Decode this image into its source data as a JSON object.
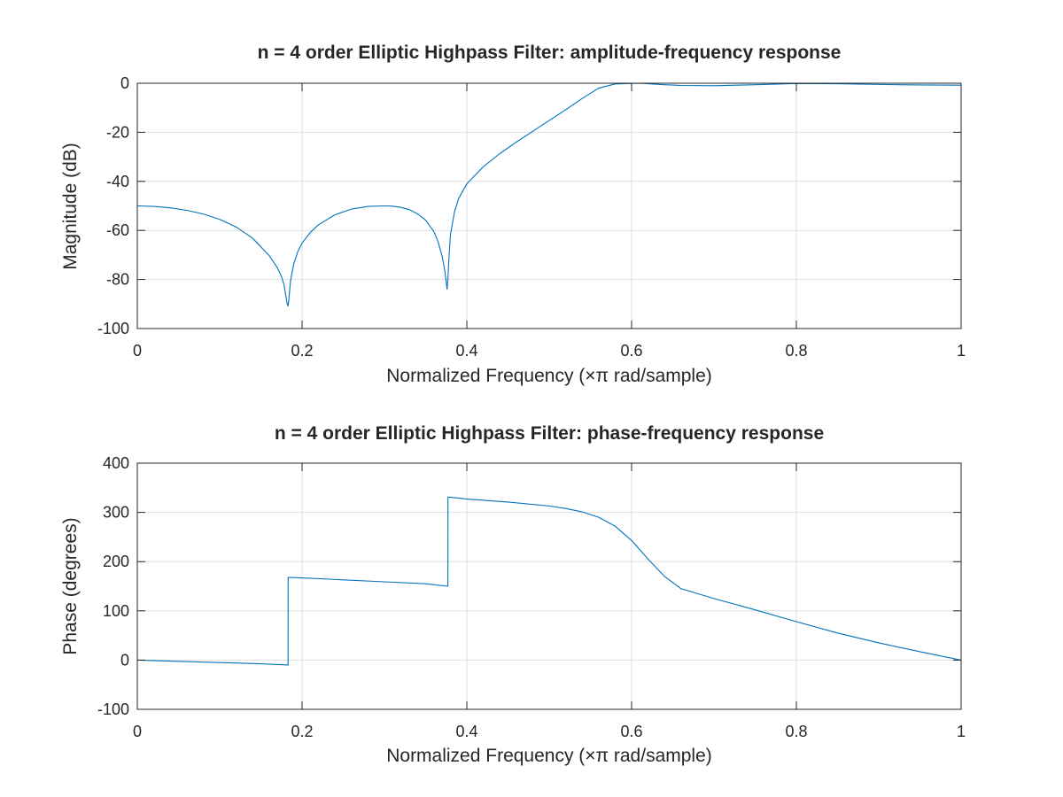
{
  "chart_data": [
    {
      "type": "line",
      "title": "n = 4 order Elliptic Highpass Filter: amplitude-frequency response",
      "xlabel": "Normalized Frequency (×π rad/sample)",
      "ylabel": "Magnitude (dB)",
      "xlim": [
        0,
        1
      ],
      "ylim": [
        -100,
        0
      ],
      "xticks": [
        "0",
        "0.2",
        "0.4",
        "0.6",
        "0.8",
        "1"
      ],
      "yticks": [
        "-100",
        "-80",
        "-60",
        "-40",
        "-20",
        "0"
      ],
      "grid": true,
      "color": "#0072bd",
      "series": [
        {
          "x": [
            0,
            0.02,
            0.04,
            0.06,
            0.08,
            0.1,
            0.12,
            0.14,
            0.16,
            0.17,
            0.175,
            0.178,
            0.18,
            0.182,
            0.183,
            0.184,
            0.186,
            0.19,
            0.195,
            0.2,
            0.21,
            0.22,
            0.24,
            0.26,
            0.28,
            0.3,
            0.31,
            0.32,
            0.33,
            0.34,
            0.35,
            0.36,
            0.365,
            0.37,
            0.373,
            0.375,
            0.376,
            0.377,
            0.378,
            0.38,
            0.385,
            0.39,
            0.4,
            0.42,
            0.44,
            0.46,
            0.48,
            0.5,
            0.52,
            0.54,
            0.56,
            0.58,
            0.6,
            0.61,
            0.62,
            0.64,
            0.66,
            0.7,
            0.75,
            0.8,
            0.85,
            0.9,
            0.95,
            1.0
          ],
          "values": [
            -50,
            -50.2,
            -50.8,
            -51.8,
            -53.3,
            -55.5,
            -58.6,
            -63.2,
            -70.2,
            -75.2,
            -78.8,
            -82,
            -86,
            -90,
            -90.8,
            -88,
            -80.5,
            -73.5,
            -68.5,
            -65.2,
            -60.8,
            -57.7,
            -53.6,
            -51.3,
            -50.2,
            -50.0,
            -50.1,
            -50.6,
            -51.5,
            -53.2,
            -55.8,
            -60.5,
            -64.5,
            -70.5,
            -76,
            -81,
            -84,
            -80,
            -73,
            -62,
            -52.5,
            -47,
            -41,
            -34,
            -28.7,
            -24,
            -19.6,
            -15.2,
            -10.8,
            -6.2,
            -2.0,
            -0.3,
            -0.05,
            0,
            -0.2,
            -0.6,
            -0.9,
            -1.0,
            -0.6,
            -0.1,
            -0.2,
            -0.5,
            -0.7,
            -0.8
          ]
        }
      ]
    },
    {
      "type": "line",
      "title": "n = 4 order Elliptic Highpass Filter: phase-frequency response",
      "xlabel": "Normalized Frequency (×π rad/sample)",
      "ylabel": "Phase (degrees)",
      "xlim": [
        0,
        1
      ],
      "ylim": [
        -100,
        400
      ],
      "xticks": [
        "0",
        "0.2",
        "0.4",
        "0.6",
        "0.8",
        "1"
      ],
      "yticks": [
        "-100",
        "0",
        "100",
        "200",
        "300",
        "400"
      ],
      "grid": true,
      "color": "#0072bd",
      "series": [
        {
          "x": [
            0,
            0.05,
            0.1,
            0.15,
            0.183,
            0.1831,
            0.2,
            0.25,
            0.3,
            0.35,
            0.377,
            0.3771,
            0.39,
            0.4,
            0.45,
            0.5,
            0.52,
            0.54,
            0.56,
            0.58,
            0.6,
            0.62,
            0.64,
            0.66,
            0.7,
            0.75,
            0.8,
            0.85,
            0.9,
            0.95,
            1.0
          ],
          "values": [
            0,
            -2.5,
            -5,
            -7.5,
            -10,
            168,
            167,
            163,
            159,
            155,
            150,
            331,
            329,
            327,
            321,
            313,
            308,
            301,
            290,
            272,
            243,
            205,
            170,
            145,
            125,
            102,
            78,
            55,
            35,
            17,
            0
          ]
        }
      ]
    }
  ]
}
